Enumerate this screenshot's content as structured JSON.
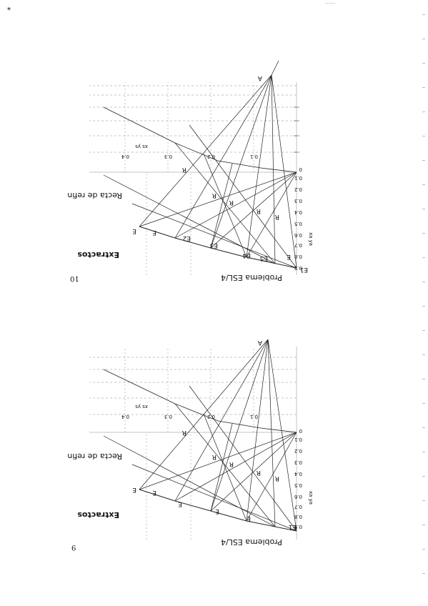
{
  "page": {
    "corner_mark": "*",
    "header_text": "......",
    "figure_numbers": [
      "10",
      "9"
    ]
  },
  "diagrams": [
    {
      "title": "Problema ESL/4",
      "extract_label": "Extractos",
      "refined_label": "Recta de refinados",
      "top_axis_label": "xs ys",
      "side_axis_label": "xa ya",
      "top_ticks": [
        "0.4",
        "0.3",
        "0.2",
        "0.1"
      ],
      "side_ticks": [
        "0",
        "0.1",
        "0.2",
        "0.3",
        "0.4",
        "0.5",
        "0.6",
        "0.7",
        "0.8",
        "0.9"
      ],
      "point_labels": [
        "E",
        "E",
        "E2",
        "E3",
        "E4",
        "E5",
        "E",
        "E1",
        "R",
        "R",
        "R",
        "R",
        "R",
        "A"
      ]
    },
    {
      "title": "Problema ESL/4",
      "extract_label": "Extractos",
      "refined_label": "Recta de refinados",
      "top_axis_label": "xs ys",
      "side_axis_label": "xa ya",
      "top_ticks": [
        "0.4",
        "0.3",
        "0.2",
        "0.1"
      ],
      "side_ticks": [
        "0",
        "0.1",
        "0.2",
        "0.3",
        "0.4",
        "0.5",
        "0.6",
        "0.7",
        "0.8",
        "0.9"
      ],
      "point_labels": [
        "E",
        "E",
        "E",
        "E",
        "E",
        "E1",
        "R",
        "R",
        "R",
        "R",
        "R",
        "A"
      ]
    }
  ]
}
